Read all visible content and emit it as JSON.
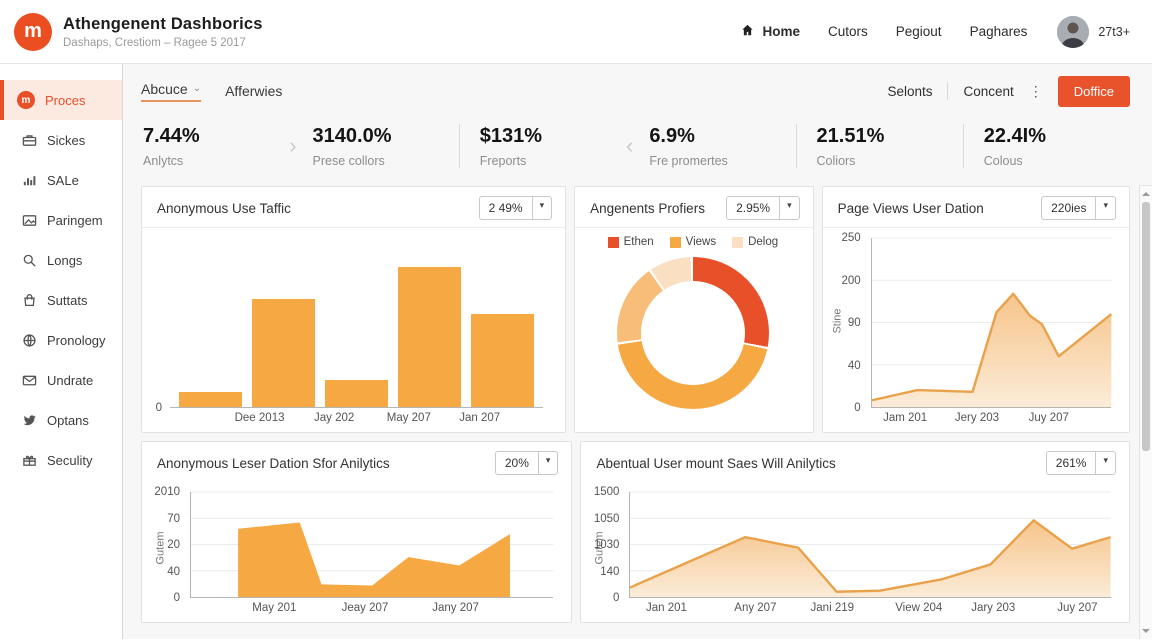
{
  "colors": {
    "accent": "#E8502A",
    "button": "#E8532C",
    "bar_orange": "#F6A843",
    "line_stroke": "#E9A24B",
    "area_fill_top": "#F6BE7F",
    "area_fill_bottom": "#FBEBD6"
  },
  "header": {
    "logo_letter": "m",
    "title": "Athengenent Dashborics",
    "subtitle": "Dashaps, Crestiom – Ragee 5 2017",
    "nav": [
      "Home",
      "Cutors",
      "Pegiout",
      "Paghares"
    ],
    "badge": "27t3+"
  },
  "sidebar": {
    "items": [
      {
        "label": "Proces",
        "icon": "logo-m",
        "active": true
      },
      {
        "label": "Sickes",
        "icon": "briefcase",
        "active": false
      },
      {
        "label": "SALe",
        "icon": "bar-chart",
        "active": false
      },
      {
        "label": "Paringem",
        "icon": "image",
        "active": false
      },
      {
        "label": "Longs",
        "icon": "search",
        "active": false
      },
      {
        "label": "Suttats",
        "icon": "bag",
        "active": false
      },
      {
        "label": "Pronology",
        "icon": "globe",
        "active": false
      },
      {
        "label": "Undrate",
        "icon": "mail",
        "active": false
      },
      {
        "label": "Optans",
        "icon": "twitter",
        "active": false
      },
      {
        "label": "Seculity",
        "icon": "gift",
        "active": false
      }
    ]
  },
  "toolbar": {
    "breadcrumb": "Abcuce",
    "breadcrumb_sibling": "Afferwies",
    "links": [
      "Selonts",
      "Concent"
    ],
    "button_label": "Doffice"
  },
  "icons": {
    "caret_down": "▾",
    "breadcrumb_caret": "⌄",
    "chevron_right": "›",
    "chevron_left": "‹",
    "dots_vertical": "⋮"
  },
  "stats": [
    {
      "value": "7.44%",
      "label": "Anlytcs"
    },
    {
      "value": "3140.0%",
      "label": "Prese collors"
    },
    {
      "value": "$131%",
      "label": "Freports"
    },
    {
      "value": "6.9%",
      "label": "Fre promertes"
    },
    {
      "value": "21.51%",
      "label": "Coliors"
    },
    {
      "value": "22.4I%",
      "label": "Colous"
    }
  ],
  "cards": {
    "traffic": {
      "title": "Anonymous Use Taffic",
      "dropdown": "2 49%"
    },
    "profilers": {
      "title": "Angenents Profiers",
      "dropdown": "2.95%"
    },
    "pageviews": {
      "title": "Page Views User Dation",
      "dropdown": "220ies"
    },
    "leser": {
      "title": "Anonymous Leser Dation Sfor Anilytics",
      "dropdown": "20%"
    },
    "abentual": {
      "title": "Abentual User mount Saes Will Anilytics",
      "dropdown": "261%"
    }
  },
  "chart_data": [
    {
      "id": "traffic",
      "type": "bar",
      "title": "Anonymous Use Taffic",
      "values_pct_of_max": [
        11,
        77,
        19,
        100,
        66
      ],
      "y_ticks": [
        "0"
      ],
      "x_labels": [
        {
          "t": "Dee 2013",
          "x": 0.24
        },
        {
          "t": "Jay 202",
          "x": 0.44
        },
        {
          "t": "May 207",
          "x": 0.64
        },
        {
          "t": "Jan 207",
          "x": 0.83
        }
      ],
      "bar_color": "#F6A843"
    },
    {
      "id": "profilers",
      "type": "donut",
      "title": "Angenents Profiers",
      "slices": [
        {
          "label": "Ethen",
          "value": 28.5,
          "color": "#E8502A"
        },
        {
          "label": "Views",
          "value": 45,
          "color": "#F6A843"
        },
        {
          "label": "",
          "value": 17.5,
          "color": "#F8BE79"
        },
        {
          "label": "Delog",
          "value": 9,
          "color": "#FADFC2"
        }
      ],
      "legend": [
        {
          "label": "Ethen",
          "color": "#E8502A"
        },
        {
          "label": "Views",
          "color": "#F6A843"
        },
        {
          "label": "Delog",
          "color": "#FADFC2"
        }
      ]
    },
    {
      "id": "pageviews",
      "type": "area",
      "title": "Page Views User Dation",
      "ylabel": "Stine",
      "y_ticks": [
        "250",
        "200",
        "90",
        "40",
        "0"
      ],
      "x_labels": [
        {
          "t": "Jam 201",
          "x": 0.14
        },
        {
          "t": "Jery 203",
          "x": 0.44
        },
        {
          "t": "Juy 207",
          "x": 0.74
        }
      ],
      "points": [
        [
          0,
          0.04
        ],
        [
          0.19,
          0.1
        ],
        [
          0.42,
          0.09
        ],
        [
          0.52,
          0.56
        ],
        [
          0.59,
          0.67
        ],
        [
          0.66,
          0.54
        ],
        [
          0.71,
          0.49
        ],
        [
          0.78,
          0.3
        ],
        [
          1,
          0.55
        ]
      ],
      "stroke": "#E9A24B",
      "fill": "gradient"
    },
    {
      "id": "leser",
      "type": "area",
      "title": "Anonymous Leser Dation Sfor Anilytics",
      "ylabel": "Gutem",
      "y_ticks": [
        "2010",
        "70",
        "20",
        "40",
        "0"
      ],
      "x_labels": [
        {
          "t": "May 201",
          "x": 0.23
        },
        {
          "t": "Jeay 207",
          "x": 0.48
        },
        {
          "t": "Jany 207",
          "x": 0.73
        }
      ],
      "points": [
        [
          0.13,
          0.65
        ],
        [
          0.3,
          0.71
        ],
        [
          0.36,
          0.12
        ],
        [
          0.5,
          0.11
        ],
        [
          0.6,
          0.38
        ],
        [
          0.74,
          0.3
        ],
        [
          0.88,
          0.6
        ]
      ],
      "fill": "solid",
      "color": "#F6A843"
    },
    {
      "id": "abentual",
      "type": "area",
      "title": "Abentual User mount Saes Will Anilytics",
      "ylabel": "Gutem",
      "y_ticks": [
        "1500",
        "1050",
        "1030",
        "140",
        "0"
      ],
      "x_labels": [
        {
          "t": "Jan 201",
          "x": 0.075
        },
        {
          "t": "Any 207",
          "x": 0.26
        },
        {
          "t": "Jani 219",
          "x": 0.42
        },
        {
          "t": "View 204",
          "x": 0.6
        },
        {
          "t": "Jary 203",
          "x": 0.755
        },
        {
          "t": "Juy 207",
          "x": 0.93
        }
      ],
      "points": [
        [
          0,
          0.09
        ],
        [
          0.24,
          0.57
        ],
        [
          0.35,
          0.47
        ],
        [
          0.43,
          0.05
        ],
        [
          0.52,
          0.06
        ],
        [
          0.65,
          0.17
        ],
        [
          0.75,
          0.31
        ],
        [
          0.84,
          0.73
        ],
        [
          0.92,
          0.46
        ],
        [
          1,
          0.57
        ]
      ],
      "stroke": "#E9A24B",
      "fill": "gradient"
    }
  ]
}
